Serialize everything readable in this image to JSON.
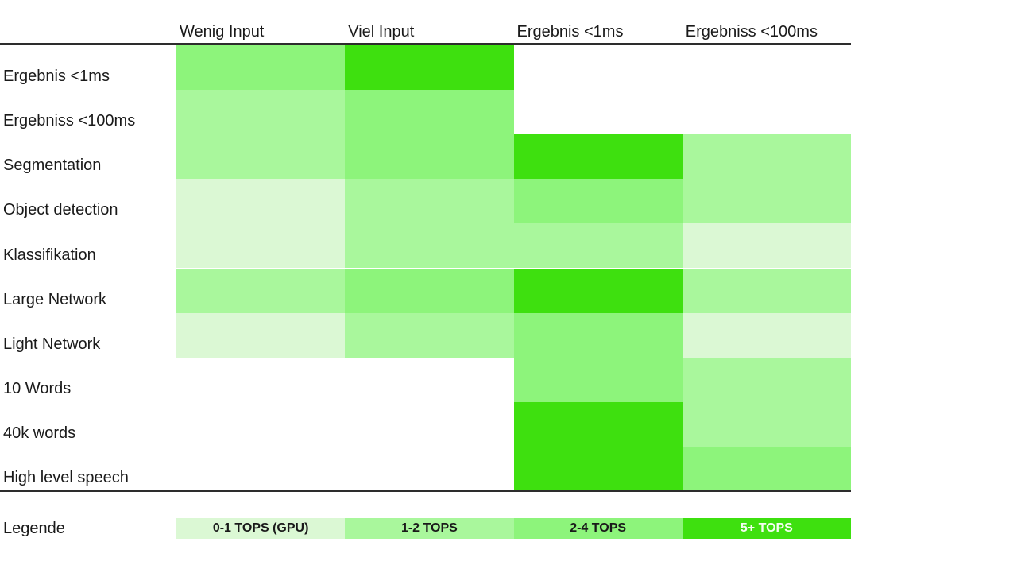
{
  "columns": [
    "Wenig Input",
    "Viel Input",
    "Ergebnis <1ms",
    "Ergebniss <100ms"
  ],
  "rows": [
    {
      "label": "Ergebnis <1ms",
      "cells": [
        3,
        4,
        0,
        0
      ]
    },
    {
      "label": "Ergebniss <100ms",
      "cells": [
        2,
        3,
        0,
        0
      ]
    },
    {
      "label": "Segmentation",
      "cells": [
        2,
        3,
        4,
        2
      ]
    },
    {
      "label": "Object detection",
      "cells": [
        1,
        2,
        3,
        2
      ]
    },
    {
      "label": "Klassifikation",
      "cells": [
        1,
        2,
        2,
        1
      ]
    },
    {
      "label": "Large Network",
      "cells": [
        2,
        3,
        4,
        2
      ]
    },
    {
      "label": "Light Network",
      "cells": [
        1,
        2,
        3,
        1
      ]
    },
    {
      "label": "10 Words",
      "cells": [
        0,
        0,
        3,
        2
      ]
    },
    {
      "label": "40k words",
      "cells": [
        0,
        0,
        4,
        2
      ]
    },
    {
      "label": "High level speech",
      "cells": [
        0,
        0,
        4,
        3
      ]
    }
  ],
  "legend": {
    "label": "Legende",
    "items": [
      {
        "label": "0-1 TOPS (GPU)",
        "level": 1
      },
      {
        "label": "1-2 TOPS",
        "level": 2
      },
      {
        "label": "2-4 TOPS",
        "level": 3
      },
      {
        "label": "5+ TOPS",
        "level": 4
      }
    ]
  },
  "palette": {
    "level1": "#dbf8d4",
    "level2": "#a9f79c",
    "level3": "#8df47b",
    "level4": "#3ee00f",
    "empty": "#ffffff"
  },
  "colors": {
    "text": "#1a1a1a",
    "rule": "#2d2d2d",
    "legend_bright_text": "#f4fdf1"
  },
  "chart_data": {
    "type": "heatmap",
    "title": "",
    "columns": [
      "Wenig Input",
      "Viel Input",
      "Ergebnis <1ms",
      "Ergebniss <100ms"
    ],
    "rows": [
      "Ergebnis <1ms",
      "Ergebniss <100ms",
      "Segmentation",
      "Object detection",
      "Klassifikation",
      "Large Network",
      "Light Network",
      "10 Words",
      "40k words",
      "High level speech"
    ],
    "values": [
      [
        3,
        4,
        0,
        0
      ],
      [
        2,
        3,
        0,
        0
      ],
      [
        2,
        3,
        4,
        2
      ],
      [
        1,
        2,
        3,
        2
      ],
      [
        1,
        2,
        2,
        1
      ],
      [
        2,
        3,
        4,
        2
      ],
      [
        1,
        2,
        3,
        1
      ],
      [
        0,
        0,
        3,
        2
      ],
      [
        0,
        0,
        4,
        2
      ],
      [
        0,
        0,
        4,
        3
      ]
    ],
    "value_meaning": "0 = no cell (white); 1-4 = TOPS requirement level",
    "scale": {
      "1": "0-1 TOPS (GPU)",
      "2": "1-2 TOPS",
      "3": "2-4 TOPS",
      "4": "5+ TOPS"
    },
    "unit": "TOPS",
    "legend_title": "Legende",
    "legend_position": "bottom",
    "grid": false
  }
}
